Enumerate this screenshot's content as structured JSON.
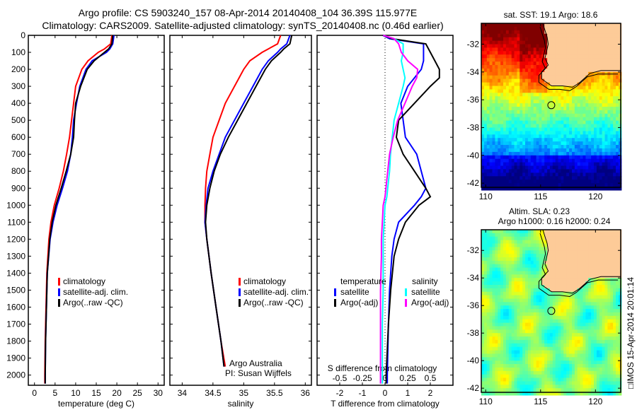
{
  "title": {
    "line1": "Argo profile: CS 5903240_157 08-Apr-2014 20140408_104 36.39S 115.977E",
    "line2": "Climatology: CARS2009. Satellite-adjusted climatology: synTS_20140408.nc (0.46d earlier)"
  },
  "footer_stamp": "□IMOS 15-Apr-2014 20:01:14",
  "credit": {
    "line1": "Argo Australia",
    "line2": "PI: Susan Wijffels"
  },
  "colors": {
    "climatology": "#ff0000",
    "satellite": "#0000ff",
    "argo": "#000000",
    "sal_satellite": "#00ffff",
    "sal_argo": "#ff00ff",
    "land": "#fdcb98"
  },
  "chart_data": [
    {
      "type": "line",
      "id": "temperature",
      "xlabel": "temperature (deg C)",
      "ylabel": "",
      "xlim": [
        -1.5,
        31.5
      ],
      "ylim": [
        2060,
        0
      ],
      "xticks": [
        0,
        5,
        10,
        15,
        20,
        25,
        30
      ],
      "yticks": [
        0,
        100,
        200,
        300,
        400,
        500,
        600,
        700,
        800,
        900,
        1000,
        1100,
        1200,
        1300,
        1400,
        1500,
        1600,
        1700,
        1800,
        1900,
        2000
      ],
      "depth": [
        0,
        50,
        80,
        100,
        150,
        200,
        300,
        400,
        500,
        600,
        700,
        800,
        900,
        1000,
        1100,
        1200,
        1400,
        1600,
        1800,
        2000,
        2050
      ],
      "legend": [
        "climatology",
        "satellite-adj. clim.",
        "Argo(..raw -QC)"
      ],
      "series": [
        {
          "name": "climatology",
          "values": [
            18.8,
            18.5,
            17.0,
            15.5,
            13.0,
            11.5,
            10.0,
            9.5,
            9.0,
            8.5,
            7.8,
            7.0,
            6.0,
            4.8,
            4.0,
            3.5,
            3.0,
            2.8,
            2.6,
            2.5,
            2.5
          ]
        },
        {
          "name": "satellite-adj. clim.",
          "values": [
            19.3,
            19.0,
            18.3,
            17.5,
            14.0,
            12.5,
            11.0,
            10.2,
            9.5,
            9.2,
            8.8,
            8.0,
            6.8,
            5.5,
            4.5,
            3.8,
            3.1,
            2.9,
            2.7,
            2.6,
            2.6
          ]
        },
        {
          "name": "Argo(..raw -QC)",
          "values": [
            19.0,
            18.8,
            18.0,
            17.0,
            14.5,
            12.8,
            11.2,
            10.0,
            9.7,
            9.5,
            8.8,
            7.7,
            6.5,
            5.2,
            4.3,
            3.7,
            3.1,
            2.9,
            2.7,
            2.6,
            2.6
          ]
        }
      ]
    },
    {
      "type": "line",
      "id": "salinity",
      "xlabel": "salinity",
      "xlim": [
        33.8,
        36.1
      ],
      "ylim": [
        2060,
        0
      ],
      "xticks": [
        34,
        34.5,
        35,
        35.5,
        36
      ],
      "depth": [
        0,
        50,
        80,
        100,
        150,
        200,
        300,
        400,
        500,
        600,
        700,
        800,
        900,
        1000,
        1100,
        1200,
        1400,
        1600,
        1800,
        1950
      ],
      "legend": [
        "climatology",
        "satellite-adj. clim.",
        "Argo(..raw -QC)"
      ],
      "series": [
        {
          "name": "climatology",
          "values": [
            35.6,
            35.55,
            35.4,
            35.3,
            35.1,
            35.0,
            34.85,
            34.7,
            34.6,
            34.5,
            34.45,
            34.4,
            34.38,
            34.37,
            34.37,
            34.4,
            34.47,
            34.55,
            34.63,
            34.7
          ]
        },
        {
          "name": "satellite-adj. clim.",
          "values": [
            35.75,
            35.7,
            35.6,
            35.55,
            35.4,
            35.3,
            35.15,
            35.0,
            34.85,
            34.7,
            34.6,
            34.5,
            34.42,
            34.39,
            34.37,
            34.4,
            34.47,
            34.55,
            34.63,
            34.68
          ]
        },
        {
          "name": "Argo(..raw -QC)",
          "values": [
            35.78,
            35.75,
            35.65,
            35.6,
            35.45,
            35.35,
            35.2,
            35.05,
            34.9,
            34.75,
            34.62,
            34.52,
            34.45,
            34.4,
            34.38,
            34.4,
            34.47,
            34.55,
            34.63,
            34.68
          ]
        }
      ]
    },
    {
      "type": "line",
      "id": "difference",
      "xlabel": "T difference from climatology",
      "x2label": "S difference from climatology",
      "xlim": [
        -3,
        3
      ],
      "x2lim": [
        -0.75,
        0.75
      ],
      "ylim": [
        2060,
        0
      ],
      "xticks": [
        -2,
        -1,
        0,
        1,
        2
      ],
      "x2ticks": [
        -0.5,
        -0.25,
        0,
        0.25,
        0.5
      ],
      "x2ticklabels": [
        "-0.5",
        "-0.25",
        "0",
        "0.25",
        "0.5"
      ],
      "depth": [
        0,
        20,
        50,
        100,
        150,
        200,
        250,
        300,
        400,
        500,
        600,
        700,
        800,
        900,
        950,
        1000,
        1100,
        1200,
        1300,
        1500,
        1700,
        2000,
        2050
      ],
      "legend_headers": [
        "temperature",
        "salinity"
      ],
      "legend": [
        "satellite",
        "Argo(-adj)",
        "satellite",
        "Argo(-adj)"
      ],
      "series": [
        {
          "name": "T satellite",
          "axis": "T",
          "values": [
            -0.1,
            0.2,
            1.7,
            1.7,
            1.7,
            1.6,
            1.3,
            1.0,
            0.7,
            0.8,
            0.9,
            1.4,
            1.6,
            1.8,
            1.6,
            1.3,
            0.6,
            0.4,
            0.3,
            0.2,
            0.15,
            0.1,
            0.1
          ]
        },
        {
          "name": "T Argo(-adj)",
          "axis": "T",
          "values": [
            -0.1,
            0.3,
            1.8,
            2.0,
            2.2,
            2.4,
            2.4,
            2.0,
            1.3,
            0.6,
            0.5,
            0.8,
            1.3,
            1.8,
            2.0,
            1.5,
            0.9,
            0.6,
            0.4,
            0.25,
            0.15,
            0.05,
            0.05
          ]
        },
        {
          "name": "S satellite",
          "axis": "S",
          "values": [
            -0.02,
            0.1,
            0.2,
            0.2,
            0.18,
            0.2,
            0.22,
            0.2,
            0.15,
            0.1,
            0.08,
            0.06,
            0.05,
            0.03,
            0.02,
            0.0,
            -0.01,
            -0.02,
            -0.02,
            -0.02,
            -0.03,
            -0.03,
            -0.03
          ]
        },
        {
          "name": "S Argo(-adj)",
          "axis": "S",
          "values": [
            -0.02,
            0.1,
            0.15,
            0.18,
            0.25,
            0.36,
            0.35,
            0.3,
            0.22,
            0.14,
            0.09,
            0.05,
            0.03,
            0.01,
            0.0,
            -0.02,
            -0.03,
            -0.04,
            -0.04,
            -0.05,
            -0.05,
            -0.05,
            -0.05
          ]
        }
      ]
    },
    {
      "type": "heatmap",
      "id": "sst-map",
      "title": "sat. SST: 19.1 Argo: 18.6",
      "xlim": [
        109.6,
        122.3
      ],
      "ylim": [
        -42.3,
        -30.5
      ],
      "xticks": [
        110,
        115,
        120
      ],
      "yticks": [
        -32,
        -34,
        -36,
        -38,
        -40,
        -42
      ],
      "argo_position": {
        "lon": 115.977,
        "lat": -36.39
      }
    },
    {
      "type": "heatmap",
      "id": "sla-map",
      "title_line1": "Altim. SLA: 0.23",
      "title_line2": "Argo h1000: 0.16 h2000: 0.24",
      "xlim": [
        109.6,
        122.3
      ],
      "ylim": [
        -42.3,
        -30.5
      ],
      "xticks": [
        110,
        115,
        120
      ],
      "yticks": [
        -32,
        -34,
        -36,
        -38,
        -40,
        -42
      ],
      "argo_position": {
        "lon": 115.977,
        "lat": -36.39
      }
    }
  ]
}
